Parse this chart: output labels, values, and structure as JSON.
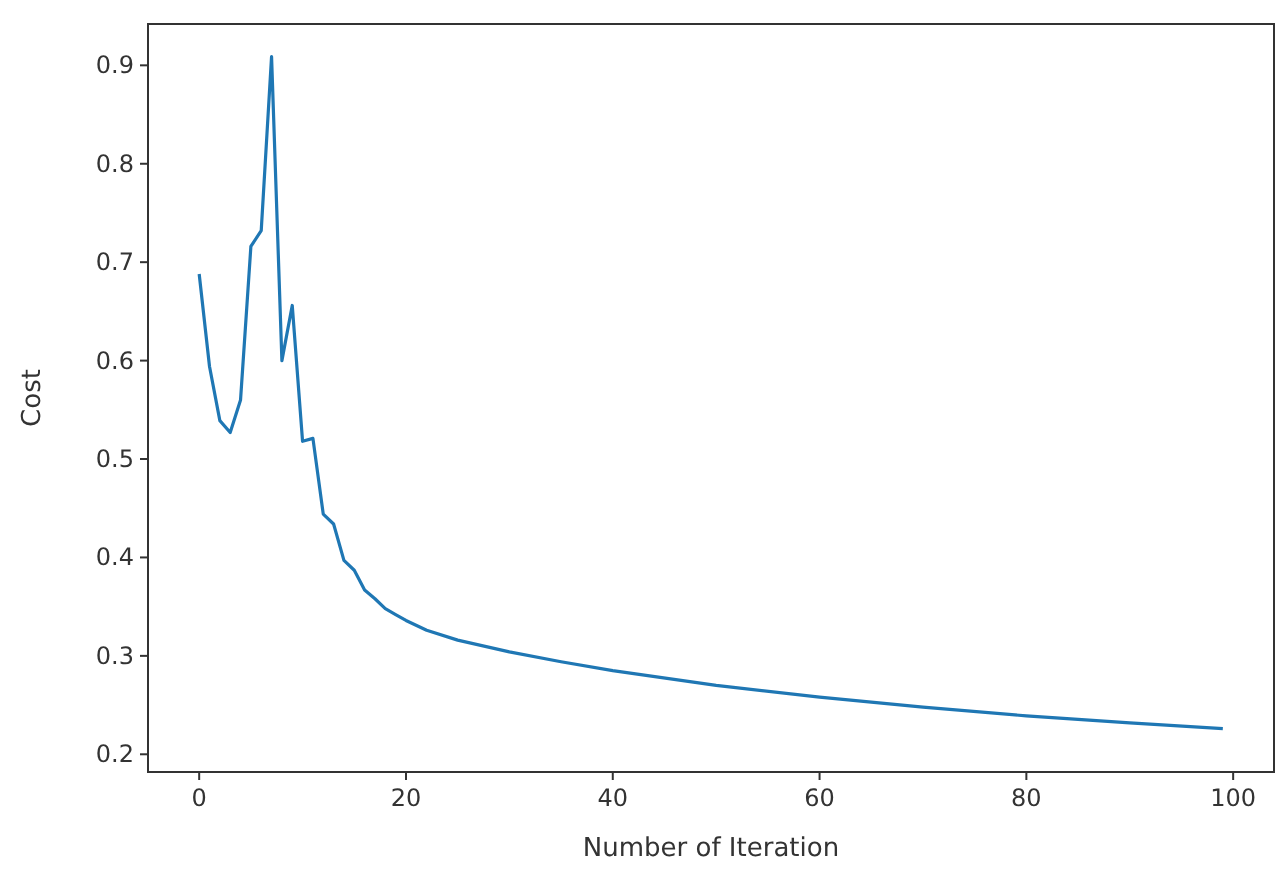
{
  "chart_data": {
    "type": "line",
    "xlabel": "Number of Iteration",
    "ylabel": "Cost",
    "x": [
      0,
      1,
      2,
      3,
      4,
      5,
      6,
      7,
      8,
      9,
      10,
      11,
      12,
      13,
      14,
      15,
      16,
      17,
      18,
      19,
      20,
      22,
      25,
      30,
      35,
      40,
      50,
      60,
      70,
      80,
      90,
      99
    ],
    "series": [
      {
        "color": "#1f77b4",
        "values": [
          0.688,
          0.594,
          0.539,
          0.527,
          0.56,
          0.716,
          0.732,
          0.909,
          0.6,
          0.656,
          0.518,
          0.521,
          0.444,
          0.434,
          0.397,
          0.387,
          0.367,
          0.358,
          0.348,
          0.342,
          0.336,
          0.326,
          0.316,
          0.304,
          0.294,
          0.285,
          0.27,
          0.258,
          0.248,
          0.239,
          0.232,
          0.226
        ]
      }
    ],
    "xlim": [
      -4.95,
      103.95
    ],
    "ylim": [
      0.182,
      0.942
    ],
    "xticks": [
      0,
      20,
      40,
      60,
      80,
      100
    ],
    "yticks": [
      0.2,
      0.3,
      0.4,
      0.5,
      0.6,
      0.7,
      0.8,
      0.9
    ],
    "grid": false,
    "marker": "none",
    "line_style": "solid"
  }
}
